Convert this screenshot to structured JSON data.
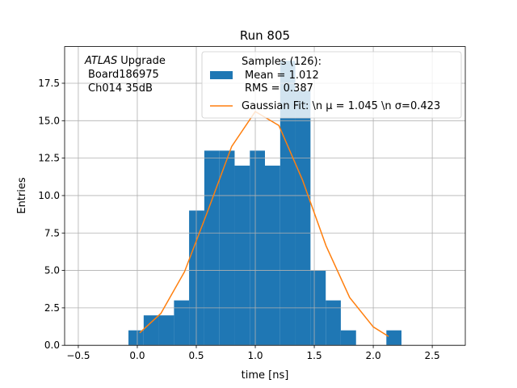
{
  "chart_data": {
    "type": "histogram",
    "title": "Run 805",
    "x_label": "time [ns]",
    "y_label": "Entries",
    "annotation": {
      "emphasis": "ATLAS",
      "lines": [
        "Upgrade",
        "Board186975",
        "Ch014 35dB"
      ]
    },
    "bins": [
      -0.075,
      0.054,
      0.182,
      0.311,
      0.439,
      0.568,
      0.697,
      0.825,
      0.954,
      1.082,
      1.211,
      1.339,
      1.468,
      1.597,
      1.725,
      1.854,
      1.982,
      2.111,
      2.239
    ],
    "counts": [
      1,
      2,
      2,
      3,
      9,
      13,
      13,
      12,
      13,
      12,
      19,
      17,
      5,
      3,
      1,
      0,
      0,
      1
    ],
    "color": "#1f77b4",
    "name": "Samples (126):",
    "name_lines": [
      "Mean = 1.012",
      "RMS = 0.387"
    ],
    "fit": {
      "name": "Gaussian Fit: \\n μ = 1.045 \\n σ=0.423",
      "color": "#ff7f0e",
      "x": [
        0.02,
        0.2,
        0.4,
        0.6,
        0.8,
        1.0,
        1.2,
        1.4,
        1.6,
        1.8,
        2.0,
        2.13
      ],
      "values": [
        0.83,
        2.13,
        4.91,
        9.03,
        13.28,
        15.61,
        14.68,
        11.04,
        6.64,
        3.19,
        1.23,
        0.59
      ]
    },
    "xlim": [
      -0.616,
      2.78
    ],
    "ylim": [
      0,
      19.95
    ],
    "xticks": [
      {
        "value": -0.5,
        "label": "−0.5"
      },
      {
        "value": 0,
        "label": "0.0"
      },
      0.5,
      {
        "value": 1,
        "label": "1.0"
      },
      1.5,
      {
        "value": 2,
        "label": "2.0"
      },
      2.5
    ],
    "yticks": [
      {
        "value": 0,
        "label": "0.0"
      },
      2.5,
      {
        "value": 5,
        "label": "5.0"
      },
      7.5,
      {
        "value": 10,
        "label": "10.0"
      },
      12.5,
      {
        "value": 15,
        "label": "15.0"
      },
      17.5
    ],
    "grid": true
  }
}
